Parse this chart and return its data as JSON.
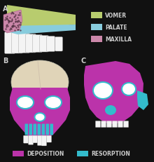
{
  "background_color": "#111111",
  "panel_A_label": "A",
  "panel_B_label": "B",
  "panel_C_label": "C",
  "legend_items": [
    {
      "label": "VOMER",
      "color": "#b8cc6e"
    },
    {
      "label": "PALATE",
      "color": "#88ccdd"
    },
    {
      "label": "MAXILLA",
      "color": "#cc88aa"
    }
  ],
  "bottom_legend": [
    {
      "label": "DEPOSITION",
      "color": "#bb33aa"
    },
    {
      "label": "RESORPTION",
      "color": "#33bbcc"
    }
  ],
  "vomer_color": "#b8cc6e",
  "palate_color": "#88ccdd",
  "maxilla_color": "#cc88aa",
  "teeth_color": "#f4f4f4",
  "skull_deposition_color": "#bb33aa",
  "skull_resorption_color": "#33bbcc",
  "skull_bone_color": "#e0d4b8",
  "label_color": "#cccccc",
  "label_fontsize": 7,
  "legend_fontsize": 5.5
}
